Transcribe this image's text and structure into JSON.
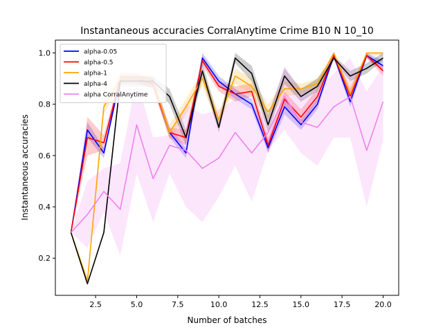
{
  "chart_data": {
    "type": "line",
    "title": "Instantaneous accuracies CorralAnytime Crime B10 N 10_10",
    "xlabel": "Number of batches",
    "ylabel": "Instantaneous accuracies",
    "xlim": [
      0.05,
      20.95
    ],
    "ylim": [
      0.055,
      1.05
    ],
    "xticks": [
      2.5,
      5.0,
      7.5,
      10.0,
      12.5,
      15.0,
      17.5,
      20.0
    ],
    "xtick_labels": [
      "2.5",
      "5.0",
      "7.5",
      "10.0",
      "12.5",
      "15.0",
      "17.5",
      "20.0"
    ],
    "yticks": [
      0.2,
      0.4,
      0.6,
      0.8,
      1.0
    ],
    "ytick_labels": [
      "0.2",
      "0.4",
      "0.6",
      "0.8",
      "1.0"
    ],
    "grid": false,
    "legend_position": "top-left",
    "x": [
      1,
      2,
      3,
      4,
      5,
      6,
      7,
      8,
      9,
      10,
      11,
      12,
      13,
      14,
      15,
      16,
      17,
      18,
      19,
      20
    ],
    "series": [
      {
        "name": "alpha-0.05",
        "color": "#0000ff",
        "values": [
          0.3,
          0.7,
          0.61,
          0.9,
          0.9,
          0.88,
          0.69,
          0.61,
          0.98,
          0.89,
          0.84,
          0.8,
          0.63,
          0.79,
          0.72,
          0.8,
          0.99,
          0.81,
          0.99,
          0.95
        ],
        "lower": [
          0.3,
          0.67,
          0.59,
          0.89,
          0.89,
          0.86,
          0.67,
          0.59,
          0.96,
          0.87,
          0.82,
          0.78,
          0.61,
          0.76,
          0.7,
          0.78,
          0.98,
          0.79,
          0.98,
          0.93
        ],
        "upper": [
          0.3,
          0.73,
          0.63,
          0.91,
          0.91,
          0.9,
          0.71,
          0.63,
          1.0,
          0.91,
          0.86,
          0.82,
          0.66,
          0.82,
          0.74,
          0.82,
          1.0,
          0.84,
          1.0,
          0.97
        ]
      },
      {
        "name": "alpha-0.5",
        "color": "#ff0000",
        "values": [
          0.3,
          0.67,
          0.65,
          0.9,
          0.9,
          0.88,
          0.69,
          0.67,
          0.97,
          0.87,
          0.84,
          0.85,
          0.64,
          0.82,
          0.75,
          0.83,
          0.99,
          0.83,
          0.99,
          0.93
        ],
        "lower": [
          0.3,
          0.6,
          0.62,
          0.88,
          0.88,
          0.86,
          0.67,
          0.64,
          0.95,
          0.85,
          0.81,
          0.83,
          0.61,
          0.79,
          0.72,
          0.81,
          0.98,
          0.81,
          0.98,
          0.91
        ],
        "upper": [
          0.3,
          0.75,
          0.68,
          0.92,
          0.92,
          0.9,
          0.71,
          0.7,
          0.99,
          0.89,
          0.87,
          0.88,
          0.67,
          0.85,
          0.78,
          0.86,
          1.0,
          0.86,
          1.0,
          0.95
        ]
      },
      {
        "name": "alpha-1",
        "color": "#ffa500",
        "values": [
          0.3,
          0.11,
          0.79,
          0.9,
          0.9,
          0.89,
          0.69,
          0.79,
          0.9,
          0.74,
          0.91,
          0.87,
          0.77,
          0.86,
          0.86,
          0.88,
          1.0,
          0.84,
          1.0,
          1.0
        ],
        "lower": [
          0.3,
          0.1,
          0.76,
          0.88,
          0.88,
          0.87,
          0.66,
          0.76,
          0.87,
          0.71,
          0.88,
          0.84,
          0.74,
          0.83,
          0.84,
          0.86,
          0.99,
          0.81,
          0.99,
          0.99
        ],
        "upper": [
          0.3,
          0.13,
          0.82,
          0.92,
          0.92,
          0.91,
          0.72,
          0.82,
          0.93,
          0.77,
          0.94,
          0.9,
          0.8,
          0.89,
          0.88,
          0.9,
          1.0,
          0.87,
          1.0,
          1.0
        ]
      },
      {
        "name": "alpha-4",
        "color": "#000000",
        "values": [
          0.3,
          0.1,
          0.3,
          0.89,
          0.89,
          0.89,
          0.83,
          0.67,
          0.93,
          0.71,
          0.98,
          0.92,
          0.72,
          0.91,
          0.83,
          0.87,
          0.98,
          0.91,
          0.94,
          0.98
        ],
        "lower": [
          0.3,
          0.1,
          0.3,
          0.87,
          0.87,
          0.87,
          0.8,
          0.64,
          0.9,
          0.69,
          0.96,
          0.89,
          0.69,
          0.88,
          0.81,
          0.85,
          0.97,
          0.89,
          0.92,
          0.97
        ],
        "upper": [
          0.3,
          0.1,
          0.3,
          0.91,
          0.91,
          0.91,
          0.86,
          0.7,
          0.96,
          0.74,
          1.0,
          0.95,
          0.76,
          0.94,
          0.86,
          0.9,
          0.99,
          0.93,
          0.96,
          1.0
        ]
      },
      {
        "name": "alpha CorralAnytime",
        "color": "#ee82ee",
        "values": [
          0.3,
          0.37,
          0.46,
          0.39,
          0.72,
          0.51,
          0.64,
          0.62,
          0.55,
          0.59,
          0.69,
          0.61,
          0.69,
          0.83,
          0.73,
          0.71,
          0.79,
          0.83,
          0.62,
          0.81
        ],
        "lower": [
          0.3,
          0.24,
          0.38,
          0.21,
          0.53,
          0.34,
          0.53,
          0.4,
          0.34,
          0.44,
          0.56,
          0.42,
          0.62,
          0.7,
          0.61,
          0.56,
          0.67,
          0.67,
          0.4,
          0.66
        ],
        "upper": [
          0.3,
          0.5,
          0.55,
          0.57,
          0.9,
          0.67,
          0.68,
          0.8,
          0.76,
          0.78,
          0.82,
          0.8,
          0.75,
          0.95,
          0.85,
          0.86,
          0.92,
          0.98,
          0.85,
          0.95
        ]
      }
    ]
  }
}
